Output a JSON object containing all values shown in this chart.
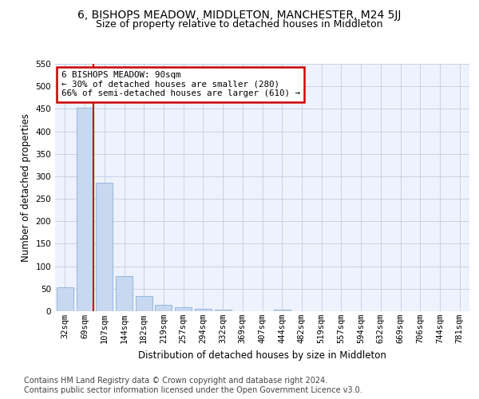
{
  "title": "6, BISHOPS MEADOW, MIDDLETON, MANCHESTER, M24 5JJ",
  "subtitle": "Size of property relative to detached houses in Middleton",
  "xlabel": "Distribution of detached houses by size in Middleton",
  "ylabel": "Number of detached properties",
  "categories": [
    "32sqm",
    "69sqm",
    "107sqm",
    "144sqm",
    "182sqm",
    "219sqm",
    "257sqm",
    "294sqm",
    "332sqm",
    "369sqm",
    "407sqm",
    "444sqm",
    "482sqm",
    "519sqm",
    "557sqm",
    "594sqm",
    "632sqm",
    "669sqm",
    "706sqm",
    "744sqm",
    "781sqm"
  ],
  "values": [
    53,
    452,
    285,
    78,
    33,
    15,
    9,
    5,
    4,
    0,
    0,
    4,
    0,
    0,
    0,
    0,
    0,
    0,
    0,
    0,
    0
  ],
  "bar_color": "#c8d8f0",
  "bar_edge_color": "#8ab0d8",
  "property_line_color": "#cc0000",
  "annotation_text": "6 BISHOPS MEADOW: 90sqm\n← 30% of detached houses are smaller (280)\n66% of semi-detached houses are larger (610) →",
  "annotation_box_color": "#ffffff",
  "annotation_box_edge_color": "#cc0000",
  "ylim": [
    0,
    550
  ],
  "yticks": [
    0,
    50,
    100,
    150,
    200,
    250,
    300,
    350,
    400,
    450,
    500,
    550
  ],
  "grid_color": "#c0cce0",
  "background_color": "#eef2fc",
  "footer_line1": "Contains HM Land Registry data © Crown copyright and database right 2024.",
  "footer_line2": "Contains public sector information licensed under the Open Government Licence v3.0.",
  "title_fontsize": 10,
  "subtitle_fontsize": 9,
  "axis_label_fontsize": 8.5,
  "tick_fontsize": 7.5,
  "footer_fontsize": 7
}
